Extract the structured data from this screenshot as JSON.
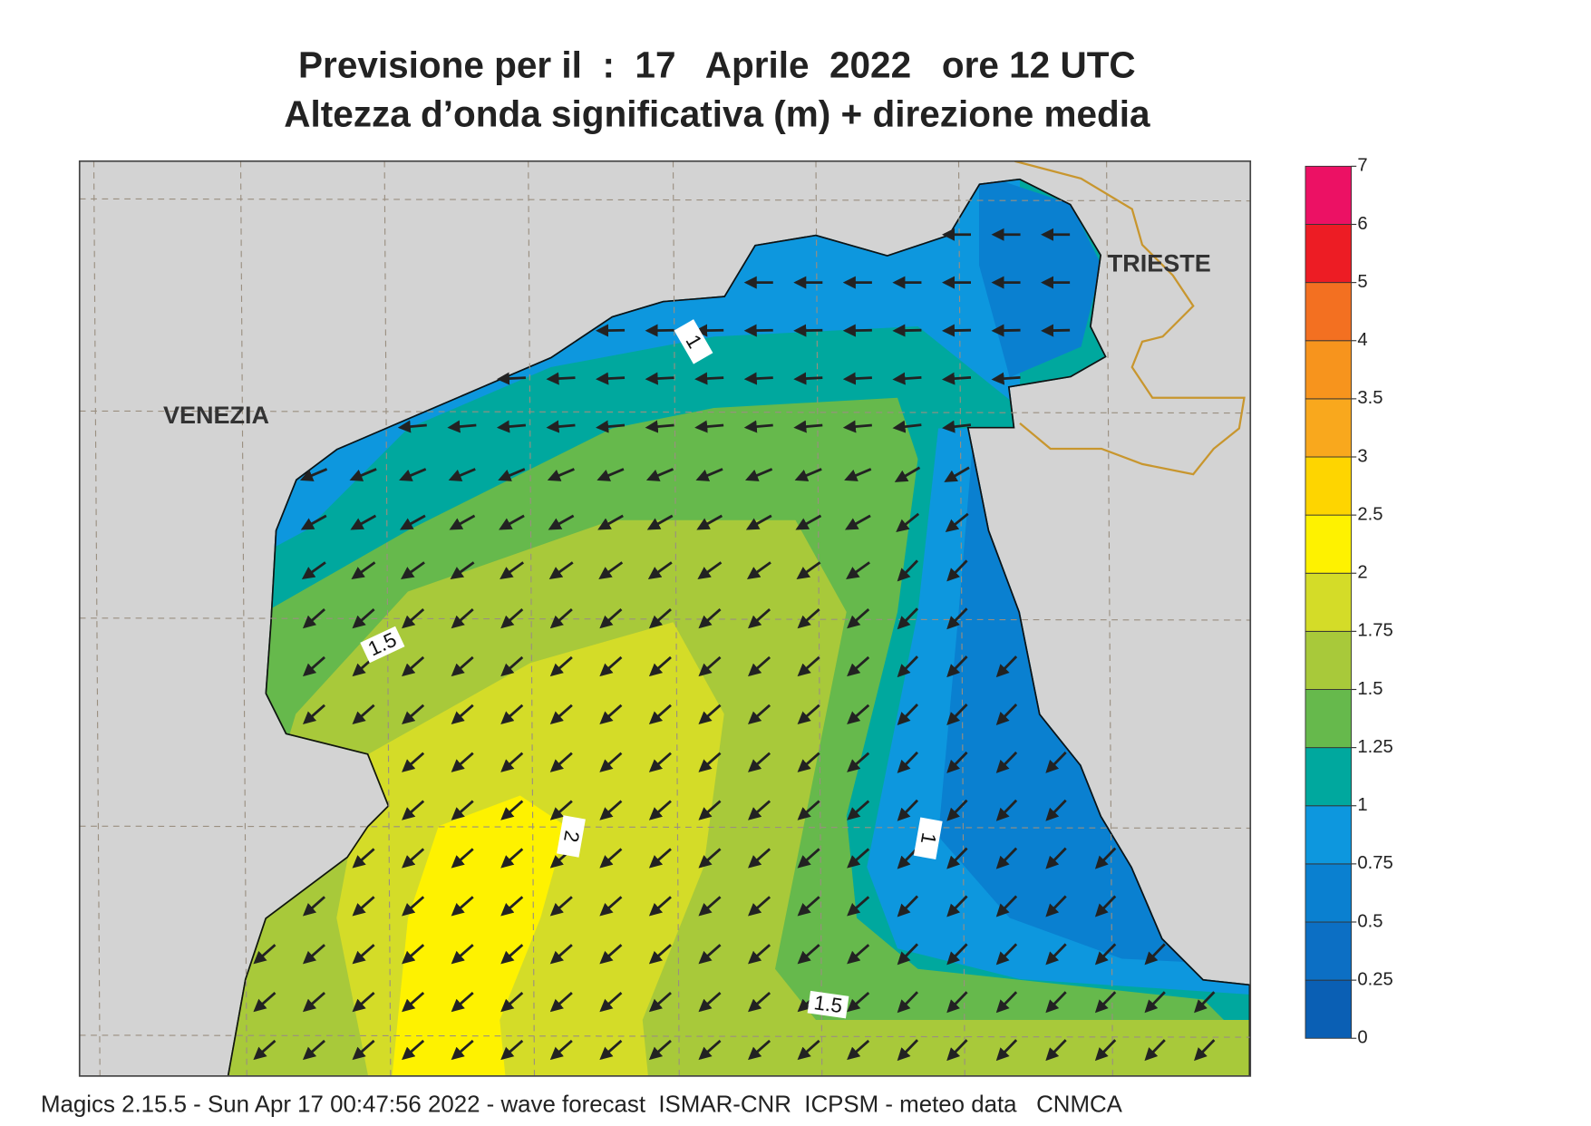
{
  "title": [
    "Previsione per il  :  17   Aprile  2022   ore 12 UTC",
    "Altezza d’onda significativa (m) + direzione media"
  ],
  "places": [
    "VENEZIA",
    "TRIESTE"
  ],
  "contour_labels": [
    1,
    1.5,
    2,
    1,
    1.5
  ],
  "colorbar": {
    "levels": [
      0,
      0.25,
      0.5,
      0.75,
      1,
      1.25,
      1.5,
      1.75,
      2,
      2.5,
      3,
      3.5,
      4,
      5,
      6,
      7
    ],
    "colors": [
      "#0a5fb4",
      "#0c6fc4",
      "#0a80d0",
      "#0d97de",
      "#00a89e",
      "#66b94c",
      "#a8c93a",
      "#d4dc28",
      "#fef200",
      "#fed500",
      "#f9a81d",
      "#f7941d",
      "#f37021",
      "#ed1c24",
      "#ec1164"
    ]
  },
  "footer": "Magics 2.15.5 - Sun Apr 17 00:47:56 2022 - wave forecast  ISMAR-CNR  ICPSM - meteo data   CNMCA"
}
